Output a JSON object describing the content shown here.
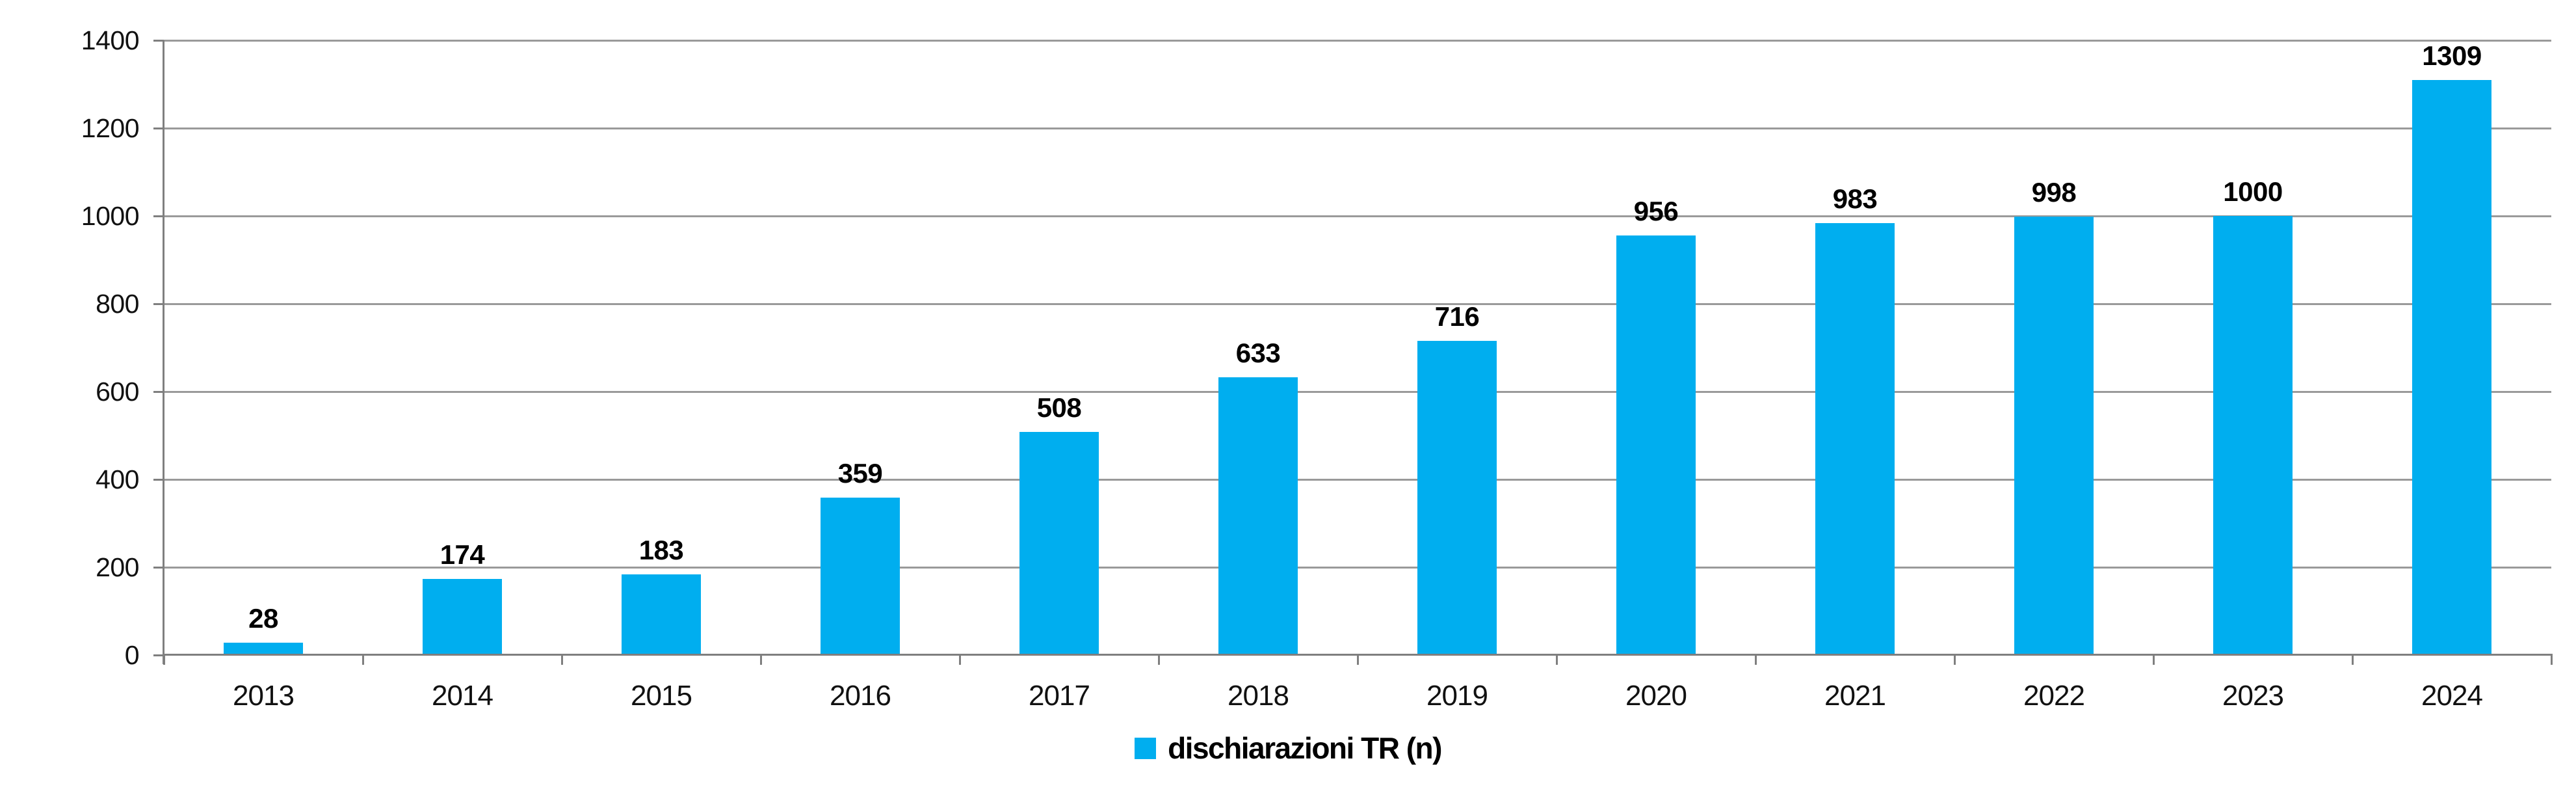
{
  "chart_data": {
    "type": "bar",
    "title": "",
    "xlabel": "",
    "ylabel": "",
    "categories": [
      "2013",
      "2014",
      "2015",
      "2016",
      "2017",
      "2018",
      "2019",
      "2020",
      "2021",
      "2022",
      "2023",
      "2024"
    ],
    "series": [
      {
        "name": "dischiarazioni TR (n)",
        "values": [
          28,
          174,
          183,
          359,
          508,
          633,
          716,
          956,
          983,
          998,
          1000,
          1309
        ]
      }
    ],
    "data_labels": [
      28,
      174,
      183,
      359,
      508,
      633,
      716,
      956,
      983,
      998,
      1000,
      1309
    ],
    "ylim": [
      0,
      1400
    ],
    "yticks": [
      0,
      200,
      400,
      600,
      800,
      1000,
      1200,
      1400
    ],
    "grid": true,
    "legend_position": "bottom",
    "bar_color": "#00AEEF"
  },
  "legend": {
    "label": "dischiarazioni TR (n)",
    "swatch_color": "#00AEEF"
  },
  "colors": {
    "bar": "#00AEEF",
    "gridline": "#9a9a9a",
    "axis": "#7f7f7f",
    "text": "#000000"
  }
}
